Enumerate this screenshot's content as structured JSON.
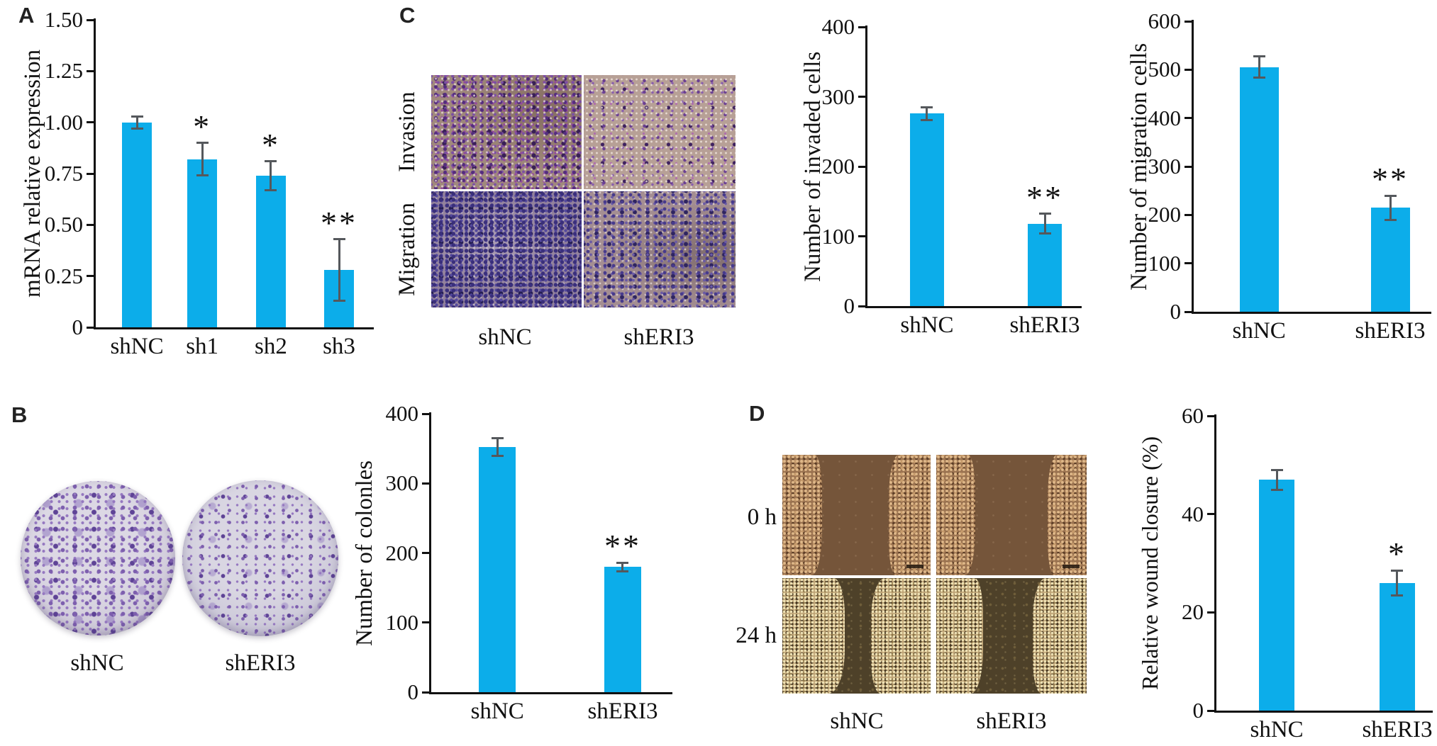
{
  "colors": {
    "bar": "#0cadea",
    "error_bar": "#55585c",
    "axis": "#111111"
  },
  "panels": {
    "A": {
      "letter": "A"
    },
    "B": {
      "letter": "B",
      "image_labels": [
        "shNC",
        "shERI3"
      ]
    },
    "C": {
      "letter": "C",
      "image_row_labels": [
        "Invasion",
        "Migration"
      ],
      "image_col_labels": [
        "shNC",
        "shERI3"
      ]
    },
    "D": {
      "letter": "D",
      "image_row_labels": [
        "0 h",
        "24 h"
      ],
      "image_col_labels": [
        "shNC",
        "shERI3"
      ]
    }
  },
  "chart_data": [
    {
      "id": "A",
      "type": "bar",
      "ylabel": "mRNA relative expression",
      "categories": [
        "shNC",
        "sh1",
        "sh2",
        "sh3"
      ],
      "values": [
        1.0,
        0.82,
        0.74,
        0.28
      ],
      "errors": [
        0.03,
        0.08,
        0.07,
        0.15
      ],
      "significance": [
        "",
        "*",
        "*",
        "**"
      ],
      "ylim": [
        0,
        1.5
      ],
      "yticks": [
        0,
        0.25,
        0.5,
        0.75,
        1,
        1.25,
        1.5
      ],
      "ytick_labels": [
        "0",
        "0.25",
        "0.50",
        "0.75",
        "1.00",
        "1.25",
        "1.50"
      ],
      "grid": false,
      "legend": null
    },
    {
      "id": "B",
      "type": "bar",
      "ylabel": "Number of colonles",
      "categories": [
        "shNC",
        "shERI3"
      ],
      "values": [
        352,
        180
      ],
      "errors": [
        13,
        6
      ],
      "significance": [
        "",
        "**"
      ],
      "ylim": [
        0,
        400
      ],
      "yticks": [
        0,
        100,
        200,
        300,
        400
      ],
      "ytick_labels": [
        "0",
        "100",
        "200",
        "300",
        "400"
      ],
      "grid": false,
      "legend": null
    },
    {
      "id": "C1",
      "type": "bar",
      "ylabel": "Number of invaded cells",
      "categories": [
        "shNC",
        "shERI3"
      ],
      "values": [
        276,
        118
      ],
      "errors": [
        9,
        14
      ],
      "significance": [
        "",
        "**"
      ],
      "ylim": [
        0,
        400
      ],
      "yticks": [
        0,
        100,
        200,
        300,
        400
      ],
      "ytick_labels": [
        "0",
        "100",
        "200",
        "300",
        "400"
      ],
      "grid": false,
      "legend": null
    },
    {
      "id": "C2",
      "type": "bar",
      "ylabel": "Number of migration cells",
      "categories": [
        "shNC",
        "shERI3"
      ],
      "values": [
        505,
        215
      ],
      "errors": [
        22,
        25
      ],
      "significance": [
        "",
        "**"
      ],
      "ylim": [
        0,
        600
      ],
      "yticks": [
        0,
        100,
        200,
        300,
        400,
        500,
        600
      ],
      "ytick_labels": [
        "0",
        "100",
        "200",
        "300",
        "400",
        "500",
        "600"
      ],
      "grid": false,
      "legend": null
    },
    {
      "id": "D",
      "type": "bar",
      "ylabel": "Relative wound closure (%)",
      "categories": [
        "shNC",
        "shERI3"
      ],
      "values": [
        47,
        26
      ],
      "errors": [
        2,
        2.5
      ],
      "significance": [
        "",
        "*"
      ],
      "ylim": [
        0,
        60
      ],
      "yticks": [
        0,
        20,
        40,
        60
      ],
      "ytick_labels": [
        "0",
        "20",
        "40",
        "60"
      ],
      "grid": false,
      "legend": null
    }
  ]
}
